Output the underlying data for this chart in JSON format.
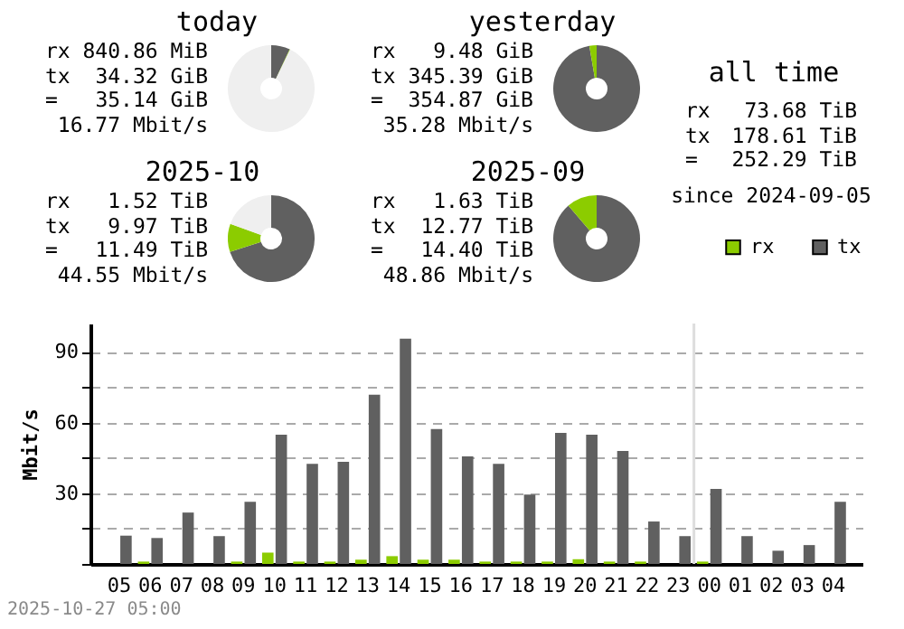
{
  "chart_data": [
    {
      "type": "donut",
      "title": "today",
      "categories": [
        null,
        null,
        null
      ],
      "values": [
        7,
        0.2,
        92.8
      ],
      "colors": [
        "#606060",
        "#8ccc00",
        "#efefef"
      ],
      "annotations": [
        "rx 840.86 MiB",
        "tx 34.32 GiB",
        "= 35.14 GiB",
        "16.77 Mbit/s"
      ]
    },
    {
      "type": "donut",
      "title": "yesterday",
      "categories": [
        null,
        null
      ],
      "values": [
        97.3,
        2.7
      ],
      "colors": [
        "#606060",
        "#8ccc00"
      ],
      "annotations": [
        "rx 9.48 GiB",
        "tx 345.39 GiB",
        "= 354.87 GiB",
        "35.28 Mbit/s"
      ]
    },
    {
      "type": "other",
      "title": "all time",
      "annotations": [
        "rx 73.68 TiB",
        "tx 178.61 TiB",
        "= 252.29 TiB",
        "since 2024-09-05"
      ]
    },
    {
      "type": "donut",
      "title": "2025-10",
      "categories": [
        null,
        null,
        null
      ],
      "values": [
        70,
        10.5,
        19.5
      ],
      "colors": [
        "#606060",
        "#8ccc00",
        "#efefef"
      ],
      "annotations": [
        "rx 1.52 TiB",
        "tx 9.97 TiB",
        "= 11.49 TiB",
        "44.55 Mbit/s"
      ]
    },
    {
      "type": "donut",
      "title": "2025-09",
      "categories": [
        null,
        null
      ],
      "values": [
        88.7,
        11.3
      ],
      "colors": [
        "#606060",
        "#8ccc00"
      ],
      "annotations": [
        "rx 1.63 TiB",
        "tx 12.77 TiB",
        "= 14.40 TiB",
        "48.86 Mbit/s"
      ]
    },
    {
      "type": "bar",
      "ylabel": "Mbit/s",
      "categories": [
        "05",
        "06",
        "07",
        "08",
        "09",
        "10",
        "11",
        "12",
        "13",
        "14",
        "15",
        "16",
        "17",
        "18",
        "19",
        "20",
        "21",
        "22",
        "23",
        "00",
        "01",
        "02",
        "03",
        "04"
      ],
      "series": [
        {
          "name": "rx",
          "color": "#8ccc00",
          "values": [
            0,
            1,
            0,
            0,
            1,
            4.8,
            1,
            1,
            1.8,
            3.3,
            1.8,
            1.8,
            1,
            1,
            1,
            2,
            1,
            1,
            0,
            1,
            0,
            0,
            0,
            0
          ]
        },
        {
          "name": "tx",
          "color": "#606060",
          "values": [
            12,
            11,
            21.8,
            11.8,
            26.4,
            54.8,
            42.5,
            43.3,
            71.8,
            95.6,
            57.2,
            45.6,
            42.5,
            29.4,
            55.6,
            54.8,
            47.9,
            18,
            11.8,
            31.8,
            11.8,
            5.6,
            8,
            26.4
          ]
        }
      ],
      "ylim": [
        0,
        102
      ],
      "yticks": [
        {
          "value": 0,
          "label": null
        },
        {
          "value": 15,
          "label": null
        },
        30,
        {
          "value": 45,
          "label": null
        },
        60,
        {
          "value": 75,
          "label": null
        },
        90
      ],
      "grid": "y",
      "legend": "top right",
      "ref_lines": [
        {
          "axis": "x",
          "value": "00",
          "color": "#dddddd"
        }
      ],
      "annotations": [
        "2025-10-27 05:00"
      ]
    }
  ]
}
